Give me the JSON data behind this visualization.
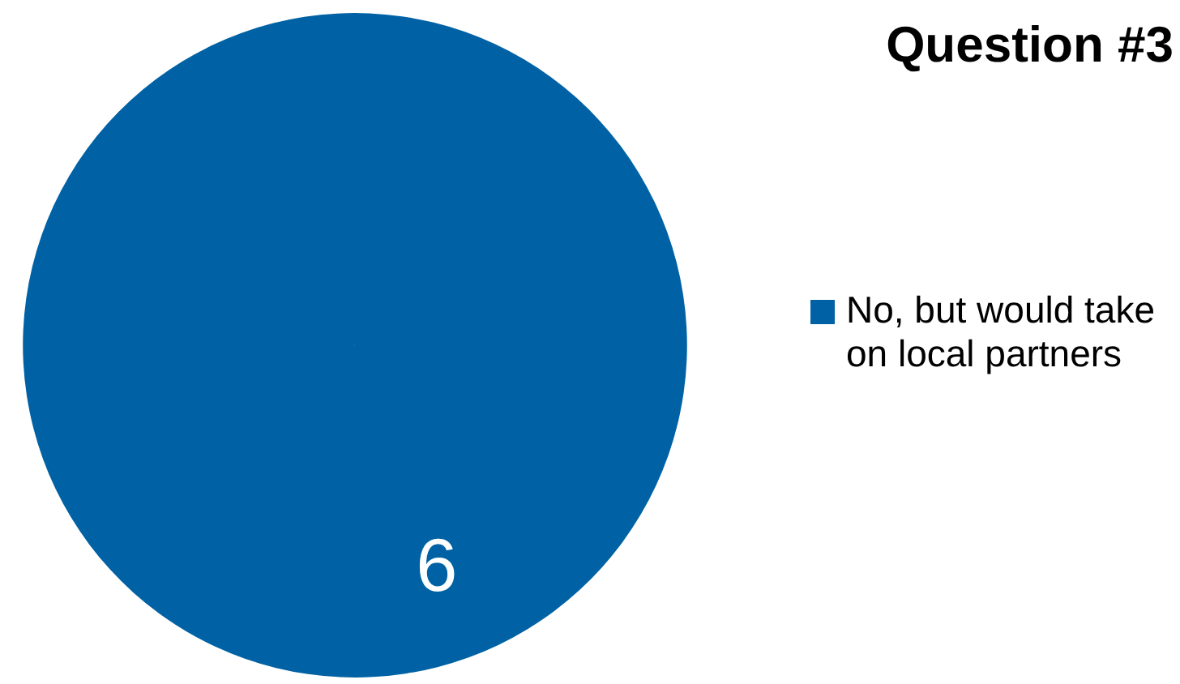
{
  "chart_data": {
    "type": "pie",
    "title": "Question #3",
    "categories": [
      "No, but would take on local partners"
    ],
    "values": [
      6
    ],
    "colors": [
      "#0062a4"
    ],
    "data_labels": true,
    "legend": "right"
  }
}
